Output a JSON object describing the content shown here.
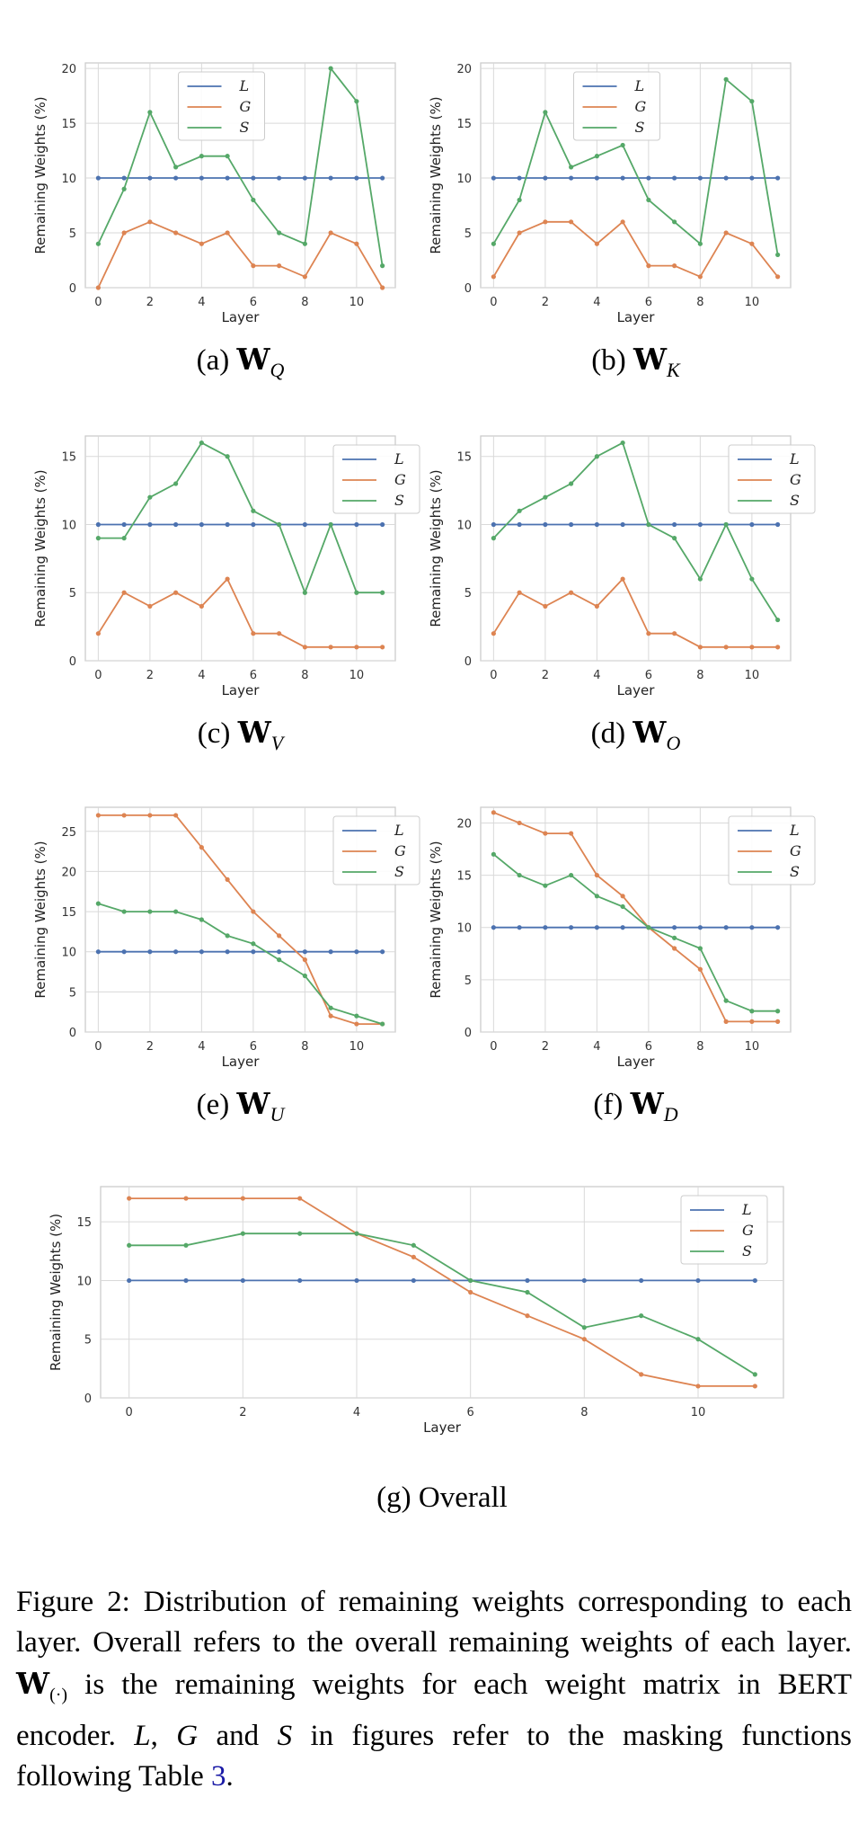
{
  "colors": {
    "L": "#4c72b0",
    "G": "#dd8452",
    "S": "#55a868",
    "grid": "#d9d9d9",
    "frame": "#cccccc"
  },
  "legend_labels": [
    "L",
    "G",
    "S"
  ],
  "chart_data": [
    {
      "id": "a",
      "type": "line",
      "caption_prefix": "(a)",
      "caption_sub": "Q",
      "xlabel": "Layer",
      "ylabel": "Remaining Weights (%)",
      "xlim": [
        -0.5,
        11.5
      ],
      "ylim": [
        0,
        20.5
      ],
      "xticks": [
        0,
        2,
        4,
        6,
        8,
        10
      ],
      "yticks": [
        0,
        5,
        10,
        15,
        20
      ],
      "legend": "top-center",
      "x": [
        0,
        1,
        2,
        3,
        4,
        5,
        6,
        7,
        8,
        9,
        10,
        11
      ],
      "series": [
        {
          "name": "L",
          "values": [
            10,
            10,
            10,
            10,
            10,
            10,
            10,
            10,
            10,
            10,
            10,
            10
          ]
        },
        {
          "name": "G",
          "values": [
            0,
            5,
            6,
            5,
            4,
            5,
            2,
            2,
            1,
            5,
            4,
            0
          ]
        },
        {
          "name": "S",
          "values": [
            4,
            9,
            16,
            11,
            12,
            12,
            8,
            5,
            4,
            20,
            17,
            2
          ]
        }
      ]
    },
    {
      "id": "b",
      "type": "line",
      "caption_prefix": "(b)",
      "caption_sub": "K",
      "xlabel": "Layer",
      "ylabel": "Remaining Weights (%)",
      "xlim": [
        -0.5,
        11.5
      ],
      "ylim": [
        0,
        20.5
      ],
      "xticks": [
        0,
        2,
        4,
        6,
        8,
        10
      ],
      "yticks": [
        0,
        5,
        10,
        15,
        20
      ],
      "legend": "top-center",
      "x": [
        0,
        1,
        2,
        3,
        4,
        5,
        6,
        7,
        8,
        9,
        10,
        11
      ],
      "series": [
        {
          "name": "L",
          "values": [
            10,
            10,
            10,
            10,
            10,
            10,
            10,
            10,
            10,
            10,
            10,
            10
          ]
        },
        {
          "name": "G",
          "values": [
            1,
            5,
            6,
            6,
            4,
            6,
            2,
            2,
            1,
            5,
            4,
            1
          ]
        },
        {
          "name": "S",
          "values": [
            4,
            8,
            16,
            11,
            12,
            13,
            8,
            6,
            4,
            19,
            17,
            3
          ]
        }
      ]
    },
    {
      "id": "c",
      "type": "line",
      "caption_prefix": "(c)",
      "caption_sub": "V",
      "xlabel": "Layer",
      "ylabel": "Remaining Weights (%)",
      "xlim": [
        -0.5,
        11.5
      ],
      "ylim": [
        0,
        16.5
      ],
      "xticks": [
        0,
        2,
        4,
        6,
        8,
        10
      ],
      "yticks": [
        0,
        5,
        10,
        15
      ],
      "legend": "top-right",
      "x": [
        0,
        1,
        2,
        3,
        4,
        5,
        6,
        7,
        8,
        9,
        10,
        11
      ],
      "series": [
        {
          "name": "L",
          "values": [
            10,
            10,
            10,
            10,
            10,
            10,
            10,
            10,
            10,
            10,
            10,
            10
          ]
        },
        {
          "name": "G",
          "values": [
            2,
            5,
            4,
            5,
            4,
            6,
            2,
            2,
            1,
            1,
            1,
            1
          ]
        },
        {
          "name": "S",
          "values": [
            9,
            9,
            12,
            13,
            16,
            15,
            11,
            10,
            5,
            10,
            5,
            5
          ]
        }
      ]
    },
    {
      "id": "d",
      "type": "line",
      "caption_prefix": "(d)",
      "caption_sub": "O",
      "xlabel": "Layer",
      "ylabel": "Remaining Weights (%)",
      "xlim": [
        -0.5,
        11.5
      ],
      "ylim": [
        0,
        16.5
      ],
      "xticks": [
        0,
        2,
        4,
        6,
        8,
        10
      ],
      "yticks": [
        0,
        5,
        10,
        15
      ],
      "legend": "top-right",
      "x": [
        0,
        1,
        2,
        3,
        4,
        5,
        6,
        7,
        8,
        9,
        10,
        11
      ],
      "series": [
        {
          "name": "L",
          "values": [
            10,
            10,
            10,
            10,
            10,
            10,
            10,
            10,
            10,
            10,
            10,
            10
          ]
        },
        {
          "name": "G",
          "values": [
            2,
            5,
            4,
            5,
            4,
            6,
            2,
            2,
            1,
            1,
            1,
            1
          ]
        },
        {
          "name": "S",
          "values": [
            9,
            11,
            12,
            13,
            15,
            16,
            10,
            9,
            6,
            10,
            6,
            3
          ]
        }
      ]
    },
    {
      "id": "e",
      "type": "line",
      "caption_prefix": "(e)",
      "caption_sub": "U",
      "xlabel": "Layer",
      "ylabel": "Remaining Weights (%)",
      "xlim": [
        -0.5,
        11.5
      ],
      "ylim": [
        0,
        28
      ],
      "xticks": [
        0,
        2,
        4,
        6,
        8,
        10
      ],
      "yticks": [
        0,
        5,
        10,
        15,
        20,
        25
      ],
      "legend": "top-right",
      "x": [
        0,
        1,
        2,
        3,
        4,
        5,
        6,
        7,
        8,
        9,
        10,
        11
      ],
      "series": [
        {
          "name": "L",
          "values": [
            10,
            10,
            10,
            10,
            10,
            10,
            10,
            10,
            10,
            10,
            10,
            10
          ]
        },
        {
          "name": "G",
          "values": [
            27,
            27,
            27,
            27,
            23,
            19,
            15,
            12,
            9,
            2,
            1,
            1
          ]
        },
        {
          "name": "S",
          "values": [
            16,
            15,
            15,
            15,
            14,
            12,
            11,
            9,
            7,
            3,
            2,
            1
          ]
        }
      ]
    },
    {
      "id": "f",
      "type": "line",
      "caption_prefix": "(f)",
      "caption_sub": "D",
      "xlabel": "Layer",
      "ylabel": "Remaining Weights (%)",
      "xlim": [
        -0.5,
        11.5
      ],
      "ylim": [
        0,
        21.5
      ],
      "xticks": [
        0,
        2,
        4,
        6,
        8,
        10
      ],
      "yticks": [
        0,
        5,
        10,
        15,
        20
      ],
      "legend": "top-right",
      "x": [
        0,
        1,
        2,
        3,
        4,
        5,
        6,
        7,
        8,
        9,
        10,
        11
      ],
      "series": [
        {
          "name": "L",
          "values": [
            10,
            10,
            10,
            10,
            10,
            10,
            10,
            10,
            10,
            10,
            10,
            10
          ]
        },
        {
          "name": "G",
          "values": [
            21,
            20,
            19,
            19,
            15,
            13,
            10,
            8,
            6,
            1,
            1,
            1
          ]
        },
        {
          "name": "S",
          "values": [
            17,
            15,
            14,
            15,
            13,
            12,
            10,
            9,
            8,
            3,
            2,
            2
          ]
        }
      ]
    },
    {
      "id": "g",
      "type": "line",
      "caption_text": "(g)  Overall",
      "xlabel": "Layer",
      "ylabel": "Remaining Weights (%)",
      "xlim": [
        -0.5,
        11.5
      ],
      "ylim": [
        0,
        18
      ],
      "xticks": [
        0,
        2,
        4,
        6,
        8,
        10
      ],
      "yticks": [
        0,
        5,
        10,
        15
      ],
      "legend": "top-right",
      "x": [
        0,
        1,
        2,
        3,
        4,
        5,
        6,
        7,
        8,
        9,
        10,
        11
      ],
      "series": [
        {
          "name": "L",
          "values": [
            10,
            10,
            10,
            10,
            10,
            10,
            10,
            10,
            10,
            10,
            10,
            10
          ]
        },
        {
          "name": "G",
          "values": [
            17,
            17,
            17,
            17,
            14,
            12,
            9,
            7,
            5,
            2,
            1,
            1
          ]
        },
        {
          "name": "S",
          "values": [
            13,
            13,
            14,
            14,
            14,
            13,
            10,
            9,
            6,
            7,
            5,
            2
          ]
        }
      ]
    }
  ],
  "caption_symbol": "W",
  "figure_caption": {
    "part1": "Figure 2: Distribution of remaining weights corresponding to each layer. Overall refers to the overall remaining weights of each layer. ",
    "sym": "W",
    "sym_sub": "(·)",
    "part2": " is the remaining weights for each weight matrix in BERT encoder. ",
    "L": "L",
    "comma": ", ",
    "G": "G",
    "and": " and ",
    "S": "S",
    "part3": " in figures refer to the masking functions following Table ",
    "ref": "3",
    "end": "."
  }
}
